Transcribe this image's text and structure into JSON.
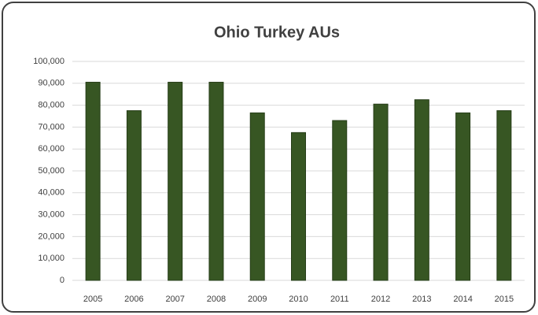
{
  "chart_data": {
    "type": "bar",
    "title": "Ohio Turkey AUs",
    "categories": [
      "2005",
      "2006",
      "2007",
      "2008",
      "2009",
      "2010",
      "2011",
      "2012",
      "2013",
      "2014",
      "2015"
    ],
    "values": [
      90500,
      77500,
      90500,
      90500,
      76500,
      67500,
      73000,
      80500,
      82500,
      76500,
      77500
    ],
    "color": "#375623",
    "ylim": [
      0,
      100000
    ],
    "yticks": [
      0,
      {
        "value": 10000,
        "label": "10,000"
      },
      {
        "value": 20000,
        "label": "20,000"
      },
      {
        "value": 30000,
        "label": "30,000"
      },
      {
        "value": 40000,
        "label": "40,000"
      },
      {
        "value": 50000,
        "label": "50,000"
      },
      {
        "value": 60000,
        "label": "60,000"
      },
      {
        "value": 70000,
        "label": "70,000"
      },
      {
        "value": 80000,
        "label": "80,000"
      },
      {
        "value": 90000,
        "label": "90,000"
      },
      {
        "value": 100000,
        "label": "100,000"
      }
    ],
    "grid": true
  }
}
